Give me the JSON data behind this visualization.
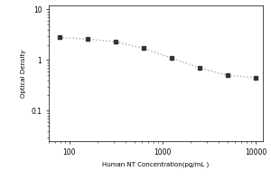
{
  "x": [
    78,
    156,
    312,
    625,
    1250,
    2500,
    5000,
    10000
  ],
  "y": [
    2.8,
    2.6,
    2.3,
    1.7,
    1.1,
    0.7,
    0.5,
    0.45
  ],
  "xlabel": "Human NT Concentration(pg/mL )",
  "ylabel": "Optical Density",
  "xlim": [
    60,
    12000
  ],
  "ylim": [
    0.025,
    12
  ],
  "xticks": [
    100,
    1000,
    10000
  ],
  "yticks": [
    0.1,
    1,
    10
  ],
  "ytick_labels": [
    "0.1",
    "1",
    "10"
  ],
  "xtick_labels": [
    "100",
    "1000",
    "10000"
  ],
  "marker": "s",
  "marker_color": "#333333",
  "line_style": "dotted",
  "line_color": "#aaaaaa",
  "marker_size": 3,
  "line_width": 1.0,
  "background_color": "#ffffff",
  "label_fontsize": 5,
  "tick_fontsize": 5.5
}
